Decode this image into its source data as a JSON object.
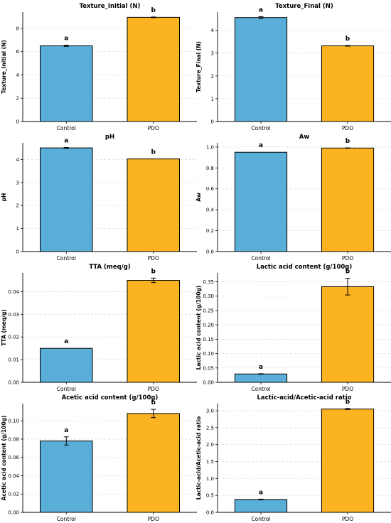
{
  "colors": {
    "control": "#5aafd8",
    "pdo": "#fbb321",
    "edge": "#000000",
    "grid": "#d9d9d9"
  },
  "chart_data": [
    {
      "type": "bar",
      "title": "Texture_Initial (N)",
      "ylabel": "Texture_Initial (N)",
      "categories": [
        "Control",
        "PDO"
      ],
      "values": [
        6.5,
        8.95
      ],
      "errors": [
        0.05,
        0.03
      ],
      "letters": [
        "a",
        "b"
      ],
      "ylim": [
        0,
        9.4
      ],
      "yticks": [
        0,
        2,
        4,
        6,
        8
      ],
      "grid": true
    },
    {
      "type": "bar",
      "title": "Texture_Final (N)",
      "ylabel": "Texture_Final (N)",
      "categories": [
        "Control",
        "PDO"
      ],
      "values": [
        4.56,
        3.32
      ],
      "errors": [
        0.04,
        0.015
      ],
      "letters": [
        "a",
        "b"
      ],
      "ylim": [
        0,
        4.8
      ],
      "yticks": [
        0,
        1,
        2,
        3,
        4
      ],
      "grid": true
    },
    {
      "type": "bar",
      "title": "pH",
      "ylabel": "pH",
      "categories": [
        "Control",
        "PDO"
      ],
      "values": [
        4.5,
        4.02
      ],
      "errors": [
        0.02,
        0.0
      ],
      "letters": [
        "a",
        "b"
      ],
      "ylim": [
        0,
        4.72
      ],
      "yticks": [
        0,
        1,
        2,
        3,
        4
      ],
      "grid": true
    },
    {
      "type": "bar",
      "title": "Aw",
      "ylabel": "Aw",
      "categories": [
        "Control",
        "PDO"
      ],
      "values": [
        0.95,
        0.99
      ],
      "errors": [
        0.0,
        0.002
      ],
      "letters": [
        "a",
        "b"
      ],
      "ylim": [
        0,
        1.04
      ],
      "yticks": [
        0.0,
        0.2,
        0.4,
        0.6,
        0.8,
        1.0
      ],
      "tickDecimals": 1,
      "grid": true
    },
    {
      "type": "bar",
      "title": "TTA (meq/g)",
      "ylabel": "TTA (meq/g)",
      "categories": [
        "Control",
        "PDO"
      ],
      "values": [
        0.015,
        0.045
      ],
      "errors": [
        0.0,
        0.001
      ],
      "letters": [
        "a",
        "b"
      ],
      "ylim": [
        0,
        0.0483
      ],
      "yticks": [
        0.0,
        0.01,
        0.02,
        0.03,
        0.04
      ],
      "tickDecimals": 2,
      "grid": true
    },
    {
      "type": "bar",
      "title": "Lactic acid content (g/100g)",
      "ylabel": "Lactic acid content (g/100g)",
      "categories": [
        "Control",
        "PDO"
      ],
      "values": [
        0.029,
        0.333
      ],
      "errors": [
        0.001,
        0.029
      ],
      "letters": [
        "a",
        "b"
      ],
      "ylim": [
        0,
        0.381
      ],
      "yticks": [
        0.0,
        0.05,
        0.1,
        0.15,
        0.2,
        0.25,
        0.3,
        0.35
      ],
      "tickDecimals": 2,
      "grid": true
    },
    {
      "type": "bar",
      "title": "Acetic acid content (g/100g)",
      "ylabel": "Acetic acid content (g/100g)",
      "categories": [
        "Control",
        "PDO"
      ],
      "values": [
        0.078,
        0.108
      ],
      "errors": [
        0.0045,
        0.0045
      ],
      "letters": [
        "a",
        "b"
      ],
      "ylim": [
        0,
        0.1188
      ],
      "yticks": [
        0.0,
        0.02,
        0.04,
        0.06,
        0.08,
        0.1
      ],
      "tickDecimals": 2,
      "grid": true
    },
    {
      "type": "bar",
      "title": "Lactic-acid/Acetic-acid ratio",
      "ylabel": "Lactic-acid/Acetic-acid ratio",
      "categories": [
        "Control",
        "PDO"
      ],
      "values": [
        0.38,
        3.05
      ],
      "errors": [
        0.01,
        0.015
      ],
      "letters": [
        "a",
        "b"
      ],
      "ylim": [
        0,
        3.21
      ],
      "yticks": [
        0.0,
        0.5,
        1.0,
        1.5,
        2.0,
        2.5,
        3.0
      ],
      "tickDecimals": 1,
      "grid": true
    }
  ]
}
